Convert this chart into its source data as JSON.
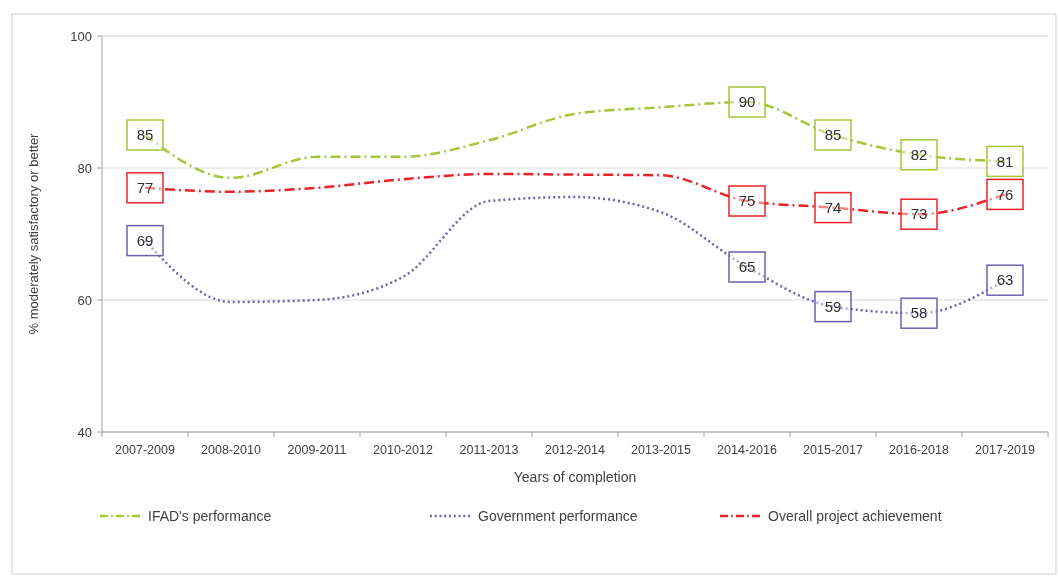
{
  "chart_data": {
    "type": "line",
    "xlabel": "Years of completion",
    "ylabel": "% moderately satisfactory or better",
    "categories": [
      "2007-2009",
      "2008-2010",
      "2009-2011",
      "2010-2012",
      "2011-2013",
      "2012-2014",
      "2013-2015",
      "2014-2016",
      "2015-2017",
      "2016-2018",
      "2017-2019"
    ],
    "series": [
      {
        "name": "IFAD's performance",
        "color": "#a4c639",
        "line_style": "dashed",
        "values": [
          85,
          78.5,
          81.7,
          81.7,
          84.2,
          88.2,
          89.2,
          90,
          85,
          82,
          81
        ],
        "value_labels": [
          "85",
          null,
          null,
          null,
          null,
          null,
          null,
          "90",
          "85",
          "82",
          "81"
        ]
      },
      {
        "name": "Government performance",
        "color": "#7060b0",
        "line_style": "dotted",
        "values": [
          69,
          59.7,
          60,
          63.5,
          75,
          75.6,
          73.3,
          65,
          59,
          58,
          63
        ],
        "value_labels": [
          "69",
          null,
          null,
          null,
          null,
          null,
          null,
          "65",
          "59",
          "58",
          "63"
        ]
      },
      {
        "name": "Overall project achievement",
        "color": "#e8242a",
        "line_style": "dashed",
        "values": [
          77,
          76.4,
          77,
          78.3,
          79.1,
          79,
          78.9,
          75,
          74,
          73,
          76
        ],
        "value_labels": [
          "77",
          null,
          null,
          null,
          null,
          null,
          null,
          "75",
          "74",
          "73",
          "76"
        ]
      }
    ],
    "ylim": [
      40,
      100
    ],
    "yticks": [
      40,
      60,
      80,
      100
    ],
    "grid": "y",
    "legend": "bottom"
  }
}
